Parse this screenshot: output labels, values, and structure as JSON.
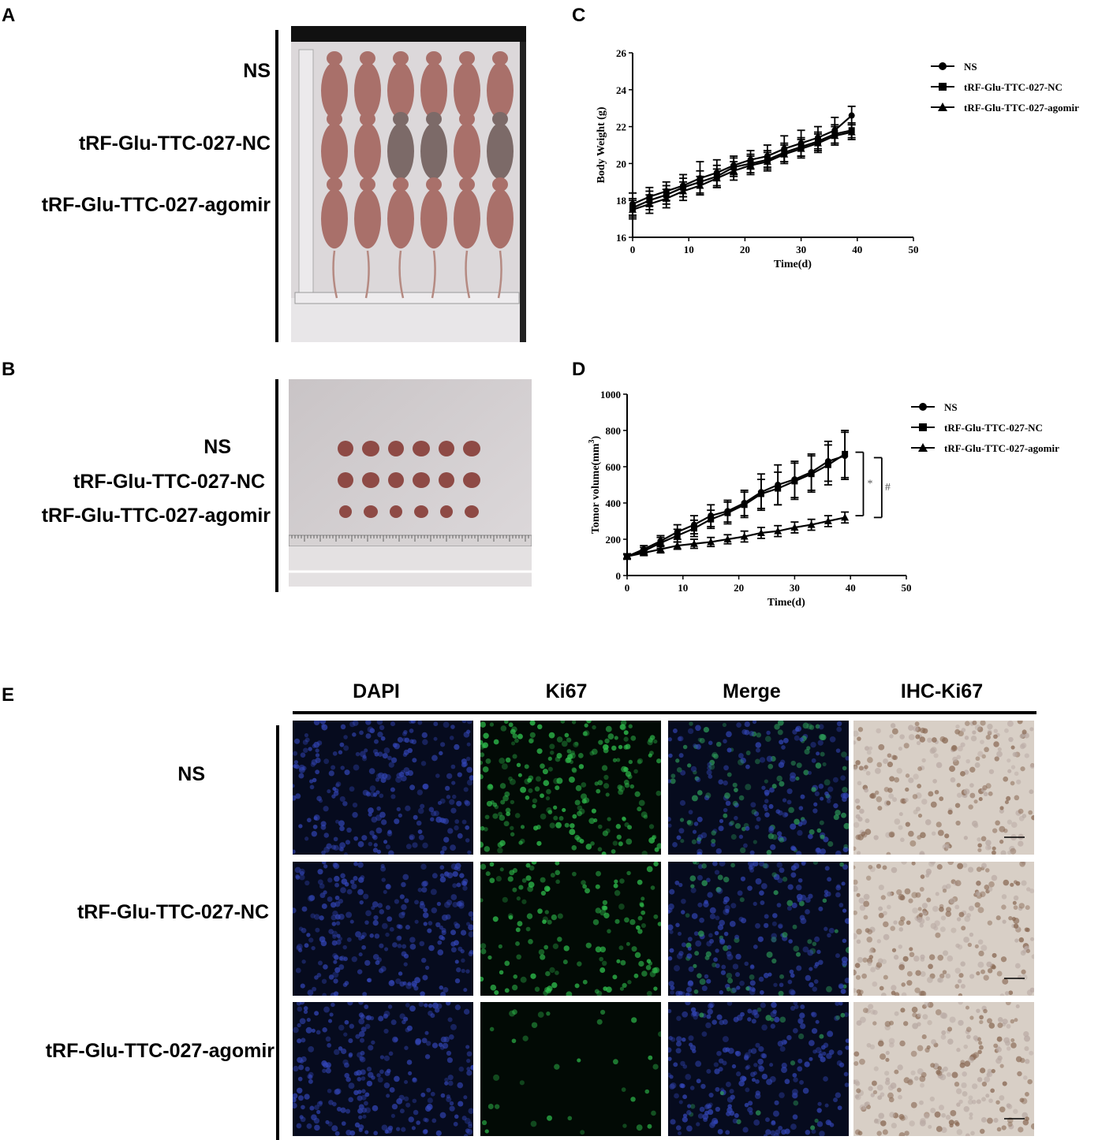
{
  "panels": {
    "A": {
      "label": "A",
      "groups": [
        "NS",
        "tRF-Glu-TTC-027-NC",
        "tRF-Glu-TTC-027-agomir"
      ]
    },
    "B": {
      "label": "B",
      "groups": [
        "NS",
        "tRF-Glu-TTC-027-NC",
        "tRF-Glu-TTC-027-agomir"
      ]
    },
    "C": {
      "label": "C"
    },
    "D": {
      "label": "D"
    },
    "E": {
      "label": "E",
      "columns": [
        "DAPI",
        "Ki67",
        "Merge",
        "IHC-Ki67"
      ],
      "rows": [
        "NS",
        "tRF-Glu-TTC-027-NC",
        "tRF-Glu-TTC-027-agomir"
      ]
    }
  },
  "colors": {
    "mouse": "#a9706a",
    "tumor": "#8e4a45",
    "dapi": "#1c2d78",
    "ki67": "#1f8a3a",
    "ihc": "#d8cfc6"
  },
  "chart_data": [
    {
      "type": "line",
      "xlabel": "Time(d)",
      "ylabel": "Body Weight (g)",
      "xlim": [
        0,
        50
      ],
      "ylim": [
        16,
        26
      ],
      "xticks": [
        0,
        10,
        20,
        30,
        40,
        50
      ],
      "yticks": [
        16,
        18,
        20,
        22,
        24,
        26
      ],
      "legend_position": "top-right",
      "x": [
        0,
        3,
        6,
        9,
        12,
        15,
        18,
        21,
        24,
        27,
        30,
        33,
        36,
        39
      ],
      "series": [
        {
          "name": "NS",
          "marker": "circle",
          "values": [
            17.8,
            18.2,
            18.5,
            18.8,
            19.2,
            19.5,
            19.9,
            20.2,
            20.4,
            20.8,
            21.1,
            21.4,
            21.8,
            22.6
          ],
          "errors": [
            0.6,
            0.5,
            0.5,
            0.6,
            0.9,
            0.7,
            0.5,
            0.5,
            0.6,
            0.7,
            0.7,
            0.6,
            0.7,
            0.5
          ]
        },
        {
          "name": "tRF-Glu-TTC-027-NC",
          "marker": "square",
          "values": [
            17.6,
            18.0,
            18.3,
            18.7,
            19.0,
            19.3,
            19.8,
            20.0,
            20.2,
            20.6,
            20.9,
            21.2,
            21.6,
            21.8
          ],
          "errors": [
            0.5,
            0.5,
            0.5,
            0.5,
            0.6,
            0.6,
            0.5,
            0.5,
            0.5,
            0.5,
            0.5,
            0.5,
            0.5,
            0.4
          ]
        },
        {
          "name": "tRF-Glu-TTC-027-agomir",
          "marker": "triangle",
          "values": [
            17.5,
            17.8,
            18.1,
            18.5,
            18.8,
            19.2,
            19.6,
            19.9,
            20.1,
            20.5,
            20.8,
            21.1,
            21.5,
            21.7
          ],
          "errors": [
            0.5,
            0.5,
            0.5,
            0.5,
            0.5,
            0.5,
            0.5,
            0.5,
            0.5,
            0.5,
            0.5,
            0.5,
            0.5,
            0.4
          ]
        }
      ]
    },
    {
      "type": "line",
      "xlabel": "Time(d)",
      "ylabel": "Tomor volume(mm",
      "ylabel_superscript": "3",
      "ylabel_close": ")",
      "xlim": [
        0,
        50
      ],
      "ylim": [
        0,
        1000
      ],
      "xticks": [
        0,
        10,
        20,
        30,
        40,
        50
      ],
      "yticks": [
        0,
        200,
        400,
        600,
        800,
        1000
      ],
      "legend_position": "top-right",
      "annotations": [
        "*",
        "#"
      ],
      "x": [
        0,
        3,
        6,
        9,
        12,
        15,
        18,
        21,
        24,
        27,
        30,
        33,
        36,
        39
      ],
      "series": [
        {
          "name": "NS",
          "marker": "circle",
          "values": [
            105,
            145,
            190,
            240,
            280,
            330,
            355,
            400,
            460,
            500,
            530,
            570,
            630,
            660
          ],
          "errors": [
            15,
            20,
            30,
            40,
            50,
            60,
            60,
            70,
            100,
            110,
            100,
            100,
            110,
            130
          ]
        },
        {
          "name": "tRF-Glu-TTC-027-NC",
          "marker": "square",
          "values": [
            105,
            135,
            180,
            220,
            260,
            310,
            345,
            390,
            450,
            480,
            520,
            560,
            610,
            670
          ],
          "errors": [
            15,
            20,
            30,
            35,
            45,
            50,
            60,
            70,
            80,
            90,
            100,
            100,
            110,
            130
          ]
        },
        {
          "name": "tRF-Glu-TTC-027-agomir",
          "marker": "triangle",
          "values": [
            105,
            125,
            145,
            165,
            175,
            185,
            200,
            215,
            235,
            245,
            265,
            280,
            300,
            320
          ],
          "errors": [
            10,
            15,
            20,
            20,
            25,
            25,
            25,
            30,
            30,
            30,
            30,
            30,
            30,
            30
          ]
        }
      ]
    }
  ]
}
